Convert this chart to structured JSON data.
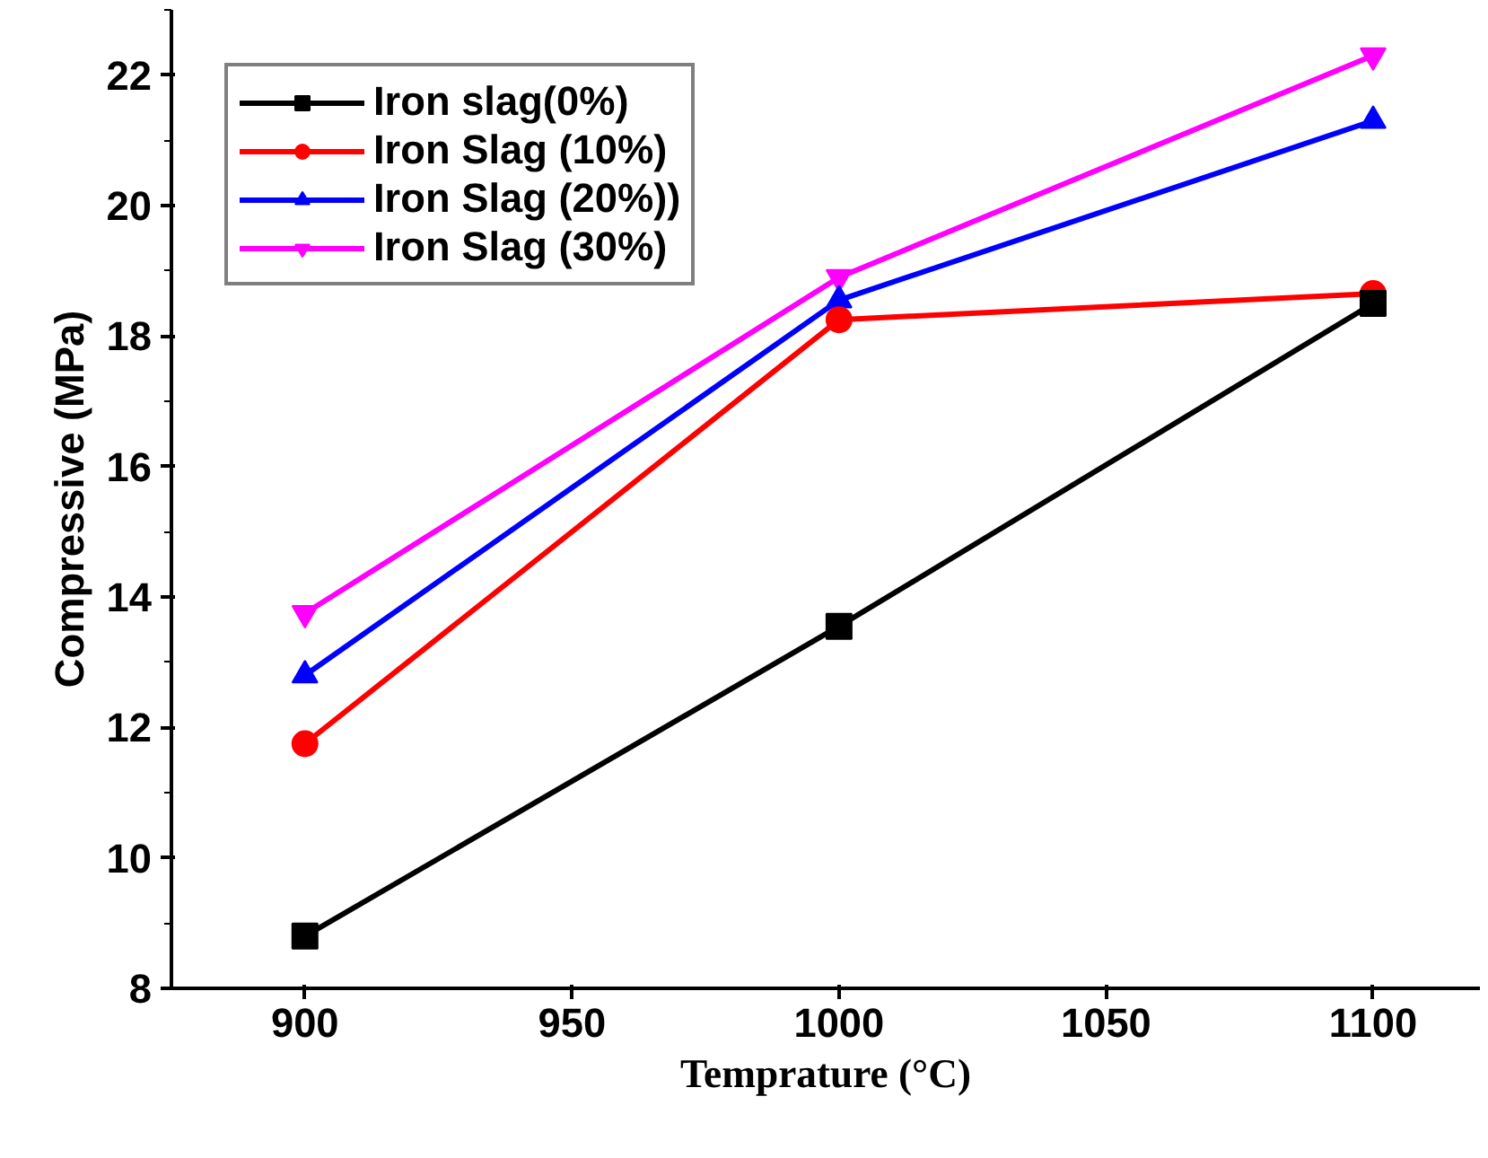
{
  "chart_data": {
    "type": "line",
    "xlabel": "Temprature (°C)",
    "ylabel": "Compressive (MPa)",
    "x": [
      900,
      1000,
      1100
    ],
    "series": [
      {
        "name": "Iron slag(0%)",
        "color": "#000000",
        "marker": "square",
        "values": [
          8.8,
          13.55,
          18.5
        ]
      },
      {
        "name": "Iron Slag (10%)",
        "color": "#ff0000",
        "marker": "circle",
        "values": [
          11.75,
          18.25,
          18.65
        ]
      },
      {
        "name": "Iron Slag (20%))",
        "color": "#0000ff",
        "marker": "triangle",
        "values": [
          12.8,
          18.55,
          21.3
        ]
      },
      {
        "name": "Iron Slag (30%)",
        "color": "#ff00ff",
        "marker": "triangle_down",
        "values": [
          13.75,
          18.9,
          22.3
        ]
      }
    ],
    "xlim": [
      875,
      1120
    ],
    "ylim": [
      8,
      23
    ],
    "xticks": [
      900,
      950,
      1000,
      1050,
      1100
    ],
    "yticks": [
      8,
      10,
      12,
      14,
      16,
      18,
      20,
      22
    ],
    "legend": "top left",
    "grid": false,
    "line_style": "solid"
  }
}
